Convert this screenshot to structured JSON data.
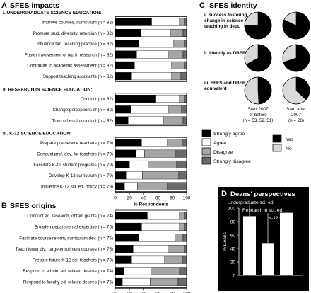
{
  "panels": {
    "a": {
      "letter": "A",
      "title": "SFES impacts"
    },
    "b": {
      "letter": "B",
      "title": "SFES origins"
    },
    "c": {
      "letter": "C",
      "title": "SFES identity"
    },
    "d": {
      "letter": "D",
      "title": "Deans' perspectives"
    }
  },
  "colors": {
    "strongly_agree": "#000000",
    "agree": "#ffffff",
    "disagree": "#a6a6a6",
    "strongly_disagree": "#6b6b6b",
    "yes": "#000000",
    "no": "#d9d9d9",
    "panel_d_bg": "#000000"
  },
  "likert_legend": [
    "Strongly agree",
    "Agree",
    "Disagree",
    "Strongly disagree"
  ],
  "yesno_legend": [
    "Yes",
    "No"
  ],
  "chart_data": [
    {
      "type": "bar",
      "panel": "A",
      "stacked": true,
      "orientation": "horizontal",
      "title": "SFES impacts",
      "xlabel": "% Respondents",
      "xlim": [
        0,
        100
      ],
      "xticks": [
        "0",
        "20",
        "40",
        "60",
        "80",
        "100"
      ],
      "series_names": [
        "Strongly agree",
        "Agree",
        "Disagree",
        "Strongly disagree"
      ],
      "groups": [
        {
          "heading": "i. UNDERGRADUATE SCIENCE EDUCATION:",
          "rows": [
            {
              "label": "Improve courses, curriculum (n = 82)",
              "values": [
                51,
                39,
                7,
                3
              ]
            },
            {
              "label": "Promote stud. diversity, retention (n = 82)",
              "values": [
                36,
                42,
                17,
                5
              ]
            },
            {
              "label": "Influence fac. teaching practice (n = 82)",
              "values": [
                33,
                49,
                15,
                3
              ]
            },
            {
              "label": "Foster involvement of ug. in research (n = 82)",
              "values": [
                30,
                45,
                20,
                5
              ]
            },
            {
              "label": "Contribute to academic assessment (n = 82)",
              "values": [
                27,
                52,
                18,
                3
              ]
            },
            {
              "label": "Support teaching assistants (n = 82)",
              "values": [
                23,
                56,
                13,
                8
              ]
            }
          ]
        },
        {
          "heading": "ii. RESEARCH IN SCIENCE EDUCATION:",
          "rows": [
            {
              "label": "Conduct (n = 82)",
              "values": [
                57,
                33,
                7,
                3
              ]
            },
            {
              "label": "Change perceptions of (n = 82)",
              "values": [
                22,
                53,
                18,
                7
              ]
            },
            {
              "label": "Train others to conduct (n = 82)",
              "values": [
                18,
                50,
                27,
                5
              ]
            }
          ]
        },
        {
          "heading": "iii. K-12 SCIENCE EDUCATION:",
          "rows": [
            {
              "label": "Prepare pre-service teachers (n = 79)",
              "values": [
                37,
                36,
                21,
                6
              ]
            },
            {
              "label": "Conduct prof. dev. for teachers (n = 79)",
              "values": [
                29,
                12,
                44,
                15
              ]
            },
            {
              "label": "Facilitate K-12 student programs (n = 79)",
              "values": [
                20,
                26,
                40,
                14
              ]
            },
            {
              "label": "Develop K-12 curriculum (n = 79)",
              "values": [
                15,
                23,
                51,
                11
              ]
            },
            {
              "label": "Influence K-12 sci. ed. policy (n = 79)",
              "values": [
                13,
                18,
                42,
                27
              ]
            }
          ]
        }
      ]
    },
    {
      "type": "bar",
      "panel": "B",
      "stacked": true,
      "orientation": "horizontal",
      "title": "SFES origins",
      "xlabel": "% Respondents",
      "xlim": [
        0,
        100
      ],
      "xticks": [
        "0",
        "20",
        "40",
        "60",
        "80",
        "100"
      ],
      "series_names": [
        "Strongly agree",
        "Agree",
        "Disagree",
        "Strongly disagree"
      ],
      "groups": [
        {
          "heading": "",
          "rows": [
            {
              "label": "Conduct ed. research, obtain grants (n = 74)",
              "values": [
                45,
                45,
                7,
                3
              ]
            },
            {
              "label": "Broaden departmental expertise (n = 75)",
              "values": [
                37,
                53,
                7,
                3
              ]
            },
            {
              "label": "Facilitate course reform, curriculum dev. (n = 75)",
              "values": [
                33,
                51,
                11,
                5
              ]
            },
            {
              "label": "Teach lower div., large enrollment courses (n = 75)",
              "values": [
                25,
                49,
                23,
                3
              ]
            },
            {
              "label": "Prepare future K-12 sci. teachers (n = 73)",
              "values": [
                23,
                46,
                25,
                6
              ]
            },
            {
              "label": "Respond to admin. ed. related desires (n = 74)",
              "values": [
                12,
                38,
                40,
                10
              ]
            },
            {
              "label": "Respond to faculty ed. related desires (n = 75)",
              "values": [
                10,
                39,
                39,
                12
              ]
            }
          ]
        }
      ]
    },
    {
      "type": "pie",
      "panel": "C",
      "title": "SFES identity",
      "columns": [
        {
          "label": "Start 2007 or before",
          "n_label": "(n = 53, 52, 51)"
        },
        {
          "label": "Start after 2007",
          "n_label": "(n = 28)"
        }
      ],
      "rows": [
        {
          "label": "i. Success fostering change in science teaching in dept.",
          "yes": [
            75,
            82
          ]
        },
        {
          "label": "ii. Identify as DBER*",
          "yes": [
            67,
            70
          ]
        },
        {
          "label": "iii. SFES and DBER equivalent",
          "yes": [
            49,
            37
          ]
        }
      ],
      "legend": [
        "Yes",
        "No"
      ]
    },
    {
      "type": "bar",
      "panel": "D",
      "title": "Deans' perspectives",
      "ylabel": "% Deans",
      "ylim": [
        0,
        100
      ],
      "yticks": [
        "0",
        "20",
        "40",
        "60",
        "80",
        "100"
      ],
      "categories": [
        "Undergraduate sci. ed.",
        "Research in sci. ed.",
        "K-12 sci. ed."
      ],
      "values": [
        88,
        47,
        93
      ]
    }
  ]
}
